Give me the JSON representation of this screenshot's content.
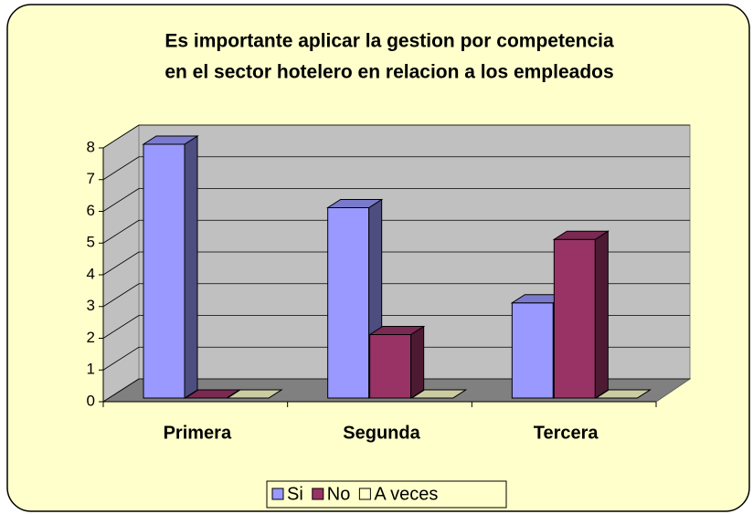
{
  "chart_data": {
    "type": "bar3d",
    "title": [
      "Es importante aplicar la gestion por competencia",
      "en el sector hotelero en relacion a los empleados"
    ],
    "categories": [
      "Primera",
      "Segunda",
      "Tercera"
    ],
    "series": [
      {
        "name": "Si",
        "color": "#9999FF",
        "values": [
          8,
          6,
          3
        ]
      },
      {
        "name": "No",
        "color": "#993366",
        "values": [
          0,
          2,
          5
        ]
      },
      {
        "name": "A veces",
        "color": "#FFFFCC",
        "values": [
          0,
          0,
          0
        ]
      }
    ],
    "ylim": [
      0,
      8
    ],
    "yticks": [
      0,
      1,
      2,
      3,
      4,
      5,
      6,
      7,
      8
    ],
    "grid": true,
    "legend": "bottom"
  }
}
